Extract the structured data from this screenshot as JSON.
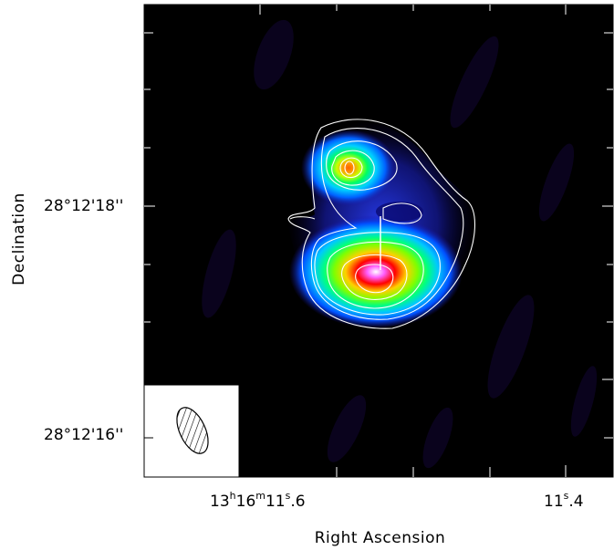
{
  "plot": {
    "xlabel": "Right Ascension",
    "ylabel": "Declination",
    "x_ticks": [
      {
        "pre": "13",
        "h": "h",
        "mid": "16",
        "m": "m",
        "sec": "11",
        "s": "s",
        "frac": ".6"
      },
      {
        "pre": "",
        "h": "",
        "mid": "",
        "m": "",
        "sec": "11",
        "s": "s",
        "frac": ".4"
      }
    ],
    "y_ticks": [
      "28°12'18''",
      "28°12'16''"
    ],
    "colors": {
      "background": "#000000",
      "contour": "#ffffff",
      "beam_box": "#ffffff"
    }
  }
}
